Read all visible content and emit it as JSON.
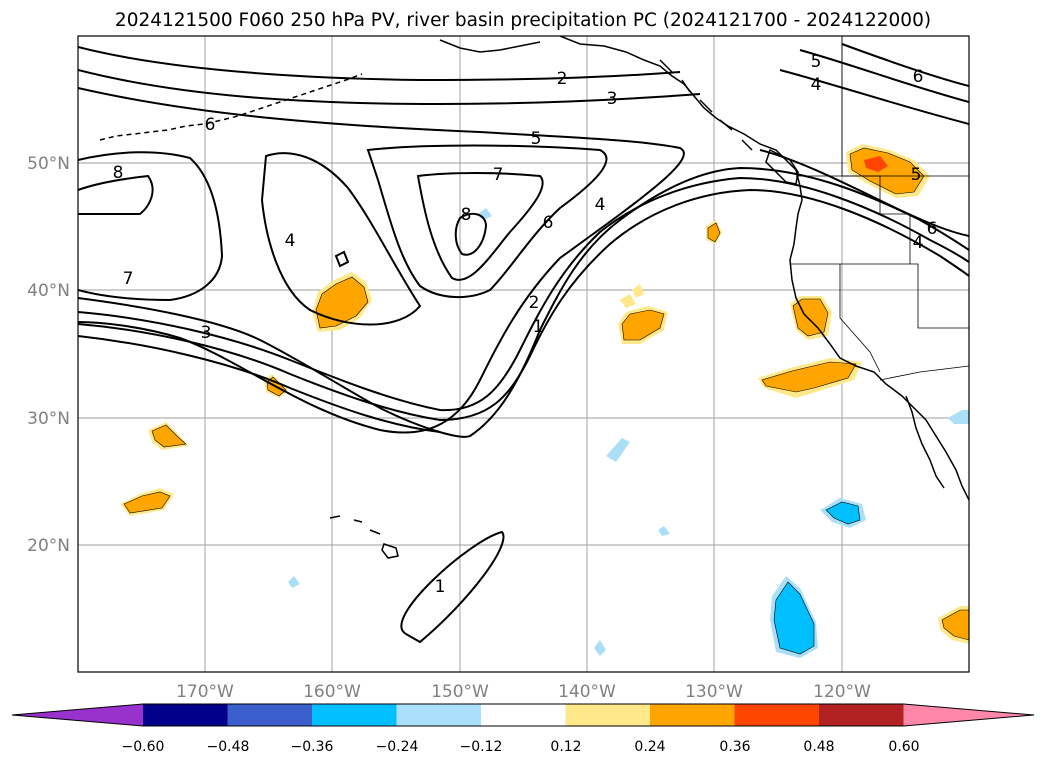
{
  "title": "2024121500 F060 250 hPa PV, river basin precipitation PC (2024121700 - 2024122000)",
  "map": {
    "lat_labels": [
      "50°N",
      "40°N",
      "30°N",
      "20°N"
    ],
    "lon_labels": [
      "170°W",
      "160°W",
      "150°W",
      "140°W",
      "130°W",
      "120°W"
    ],
    "gridlines": true,
    "contour_labels": [
      "2",
      "3",
      "5",
      "4",
      "6",
      "5",
      "7",
      "8",
      "4",
      "6",
      "4",
      "2",
      "1",
      "8",
      "7",
      "3",
      "1",
      "5",
      "6",
      "4",
      "6"
    ],
    "shading_colors": {
      "positive_low": "#ffe88a",
      "positive_mid": "#ffa500",
      "positive_high": "#ff4500",
      "negative_low": "#abdff7",
      "negative_mid": "#00bfff"
    }
  },
  "colorbar": {
    "ticks": [
      "−0.60",
      "−0.48",
      "−0.36",
      "−0.24",
      "−0.12",
      "0.12",
      "0.24",
      "0.36",
      "0.48",
      "0.60"
    ],
    "colors": [
      "#9932cc",
      "#00008b",
      "#3a5fcd",
      "#00bfff",
      "#abe0fa",
      "#ffffff",
      "#ffe88a",
      "#ffa500",
      "#ff4500",
      "#b22222",
      "#ff88aa"
    ]
  }
}
